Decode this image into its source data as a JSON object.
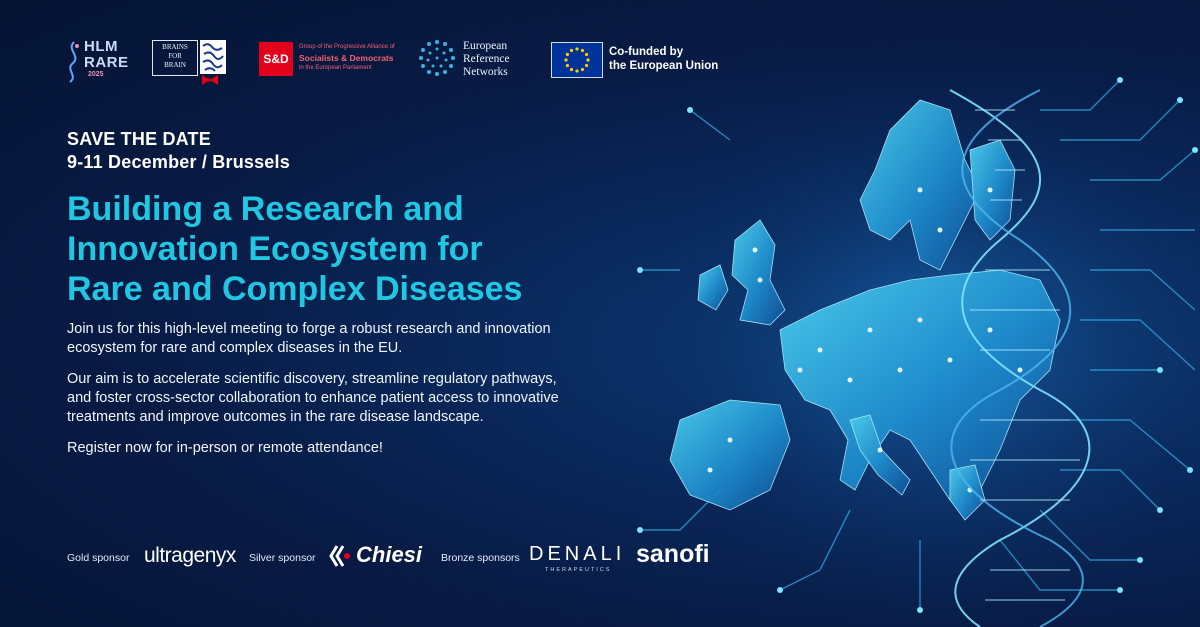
{
  "header_logos": {
    "hlm": {
      "line1": "HLM",
      "line2": "RARE",
      "year": "2025"
    },
    "brains_for_brain": {
      "line1": "BRAINS",
      "line2": "FOR",
      "line3": "BRAIN"
    },
    "sd": {
      "badge": "S&D",
      "line1": "Group of the Progressive Alliance of",
      "line2": "Socialists & Democrats",
      "line3": "in the European Parliament"
    },
    "ern": {
      "line1": "European",
      "line2": "Reference",
      "line3": "Networks"
    },
    "eu": {
      "line1": "Co-funded by",
      "line2": "the European Union"
    }
  },
  "save_the_date": {
    "title": "SAVE THE DATE",
    "when_where": "9-11 December / Brussels"
  },
  "headline": {
    "line1": "Building a Research and",
    "line2": "Innovation Ecosystem for",
    "line3": "Rare and Complex Diseases"
  },
  "body": {
    "p1": "Join us for this high-level meeting to forge a robust research and innovation ecosystem for rare and complex diseases in the EU.",
    "p2": "Our aim is to accelerate scientific discovery, streamline regulatory pathways, and foster cross-sector collaboration to enhance patient access to innovative treatments and improve outcomes in the rare disease landscape.",
    "p3": "Register now for in-person or remote attendance!"
  },
  "sponsors": {
    "gold_label": "Gold sponsor",
    "gold_name": "ultragenyx",
    "silver_label": "Silver sponsor",
    "silver_name": "Chiesi",
    "bronze_label": "Bronze sponsors",
    "bronze_1": "DENALI",
    "bronze_1_sub": "THERAPEUTICS",
    "bronze_2": "sanofi"
  },
  "colors": {
    "background": "#081b45",
    "accent": "#1fc7e3",
    "sd_red": "#e2001a",
    "eu_blue": "#003399",
    "eu_star": "#ffcc00"
  }
}
